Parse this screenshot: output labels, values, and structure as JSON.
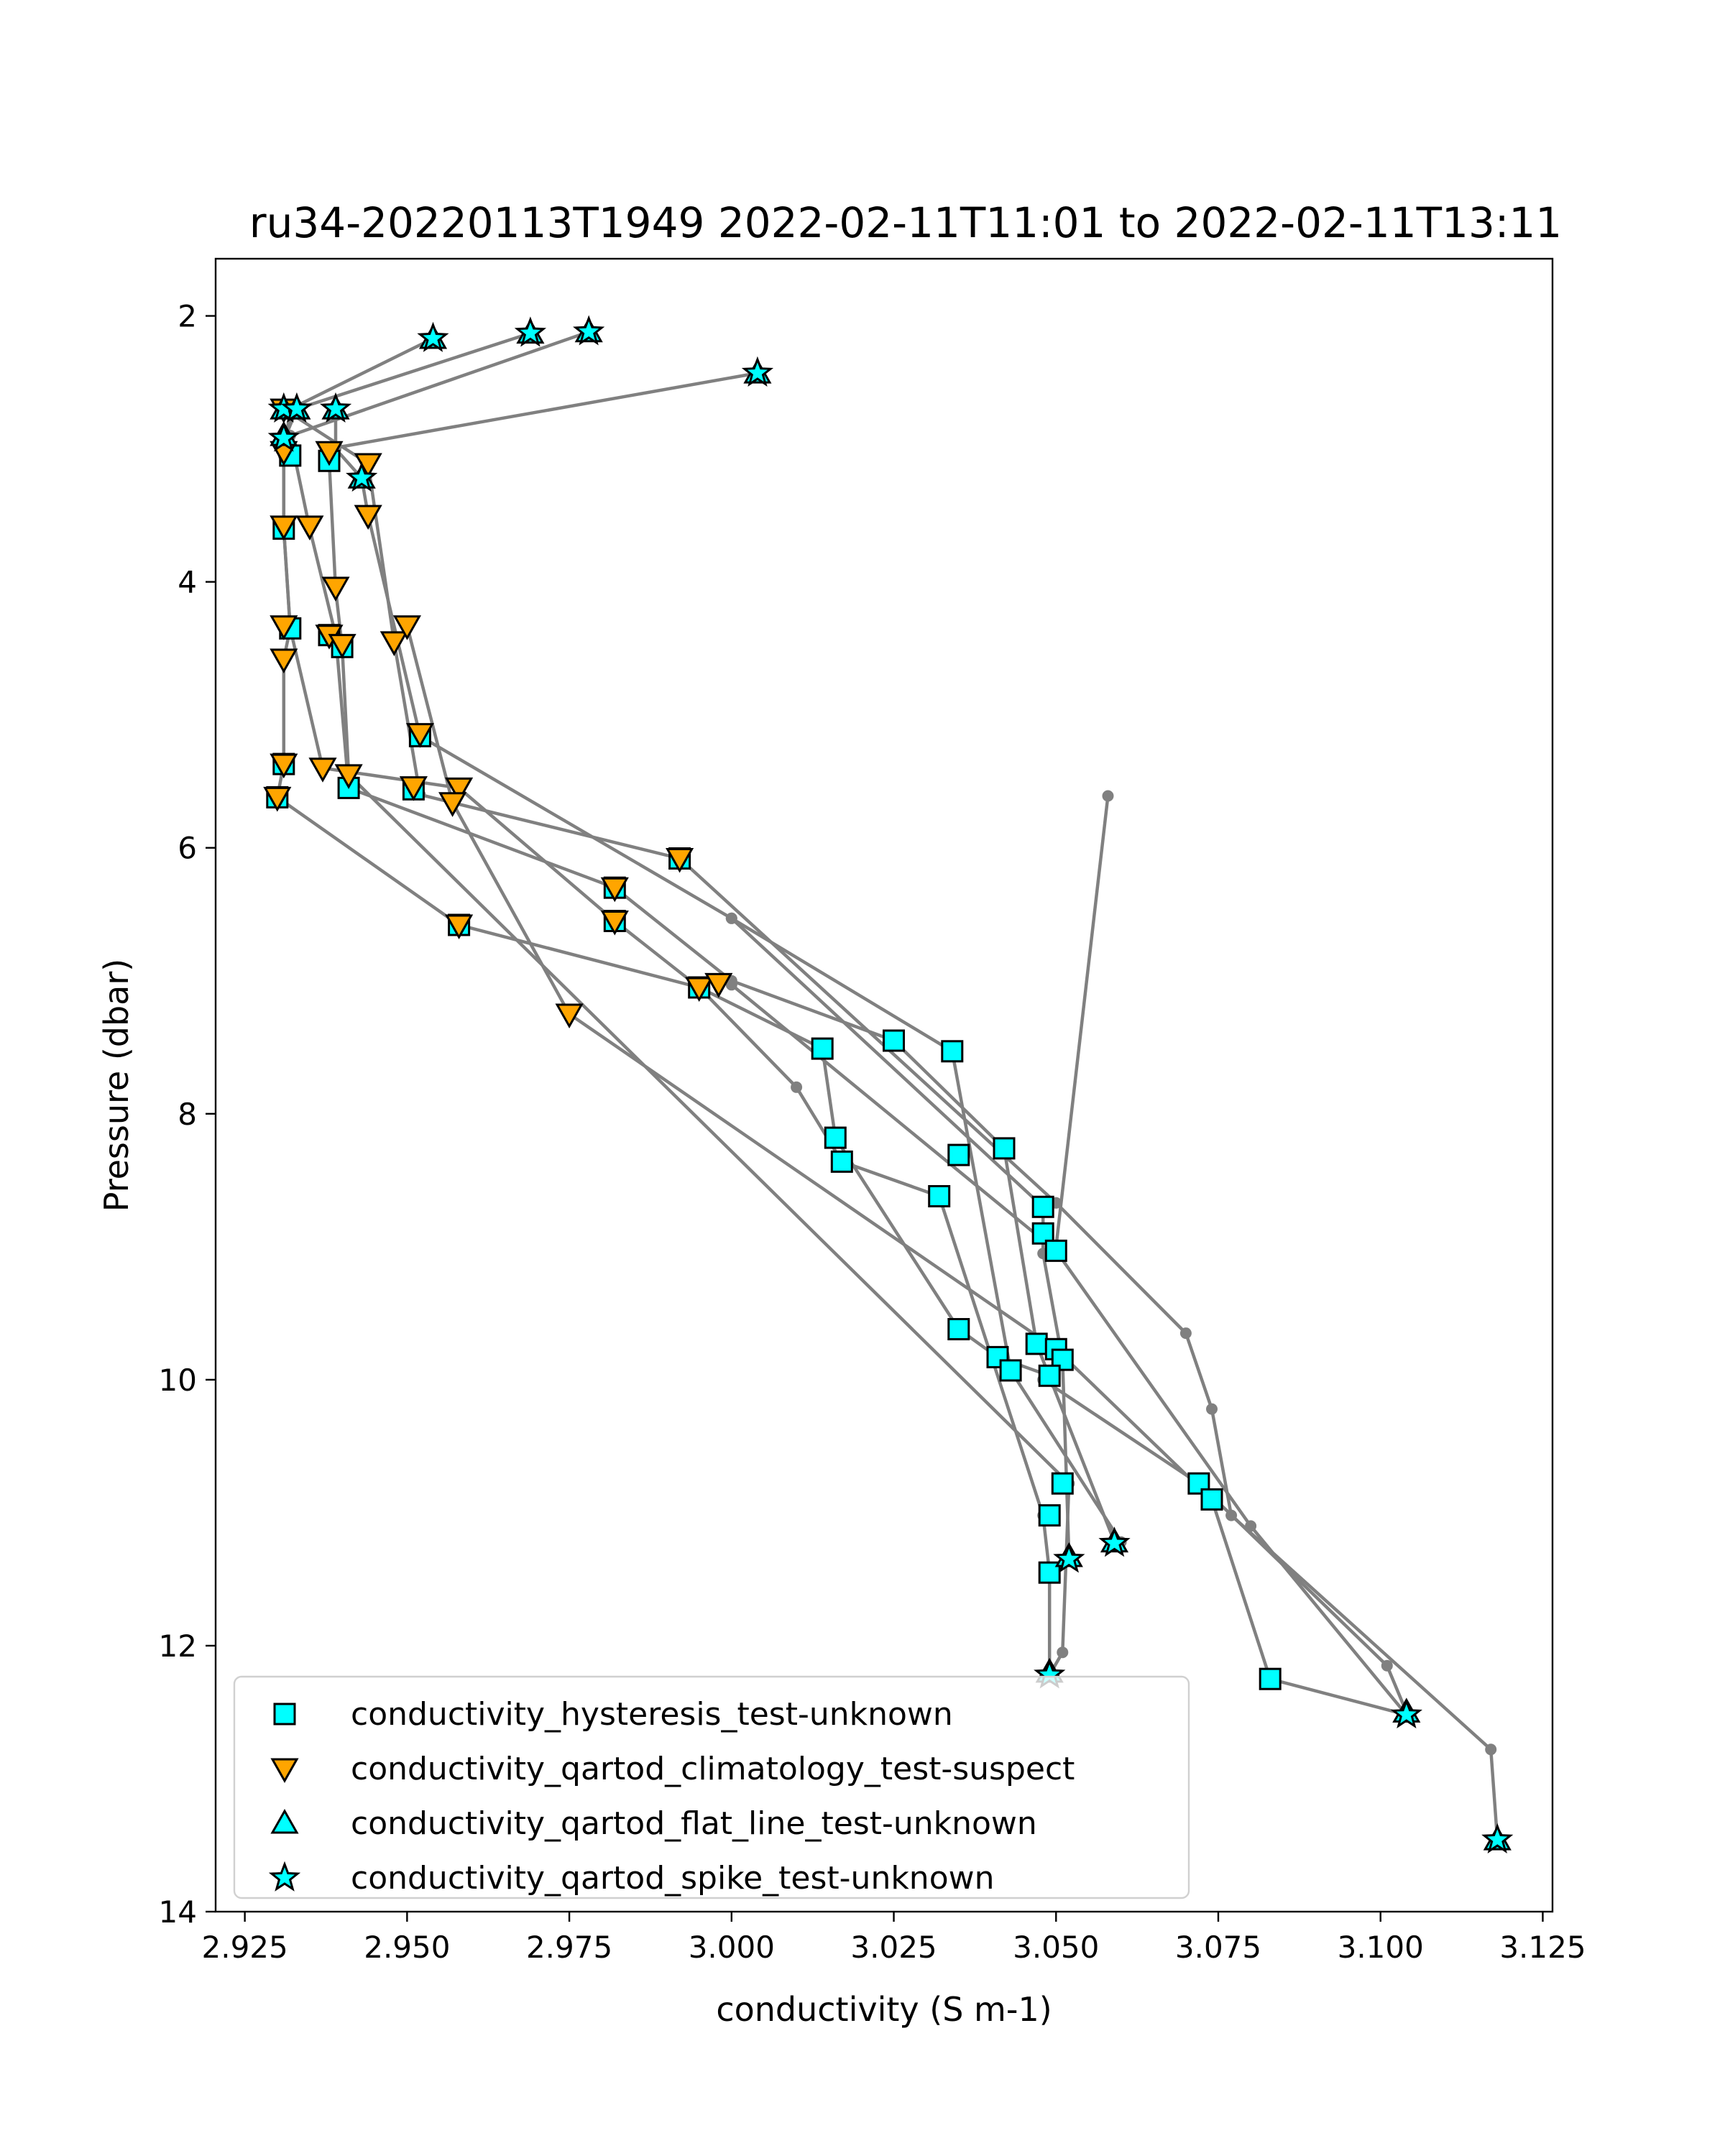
{
  "chart_data": {
    "type": "scatter",
    "title": "ru34-20220113T1949 2022-02-11T11:01 to 2022-02-11T13:11",
    "xlabel": "conductivity (S m-1)",
    "ylabel": "Pressure (dbar)",
    "xlim": [
      2.9205,
      3.1265
    ],
    "ylim": [
      14.0,
      1.57
    ],
    "y_inverted": true,
    "xticks": [
      2.925,
      2.95,
      2.975,
      3.0,
      3.025,
      3.05,
      3.075,
      3.1,
      3.125
    ],
    "xtick_labels": [
      "2.925",
      "2.950",
      "2.975",
      "3.000",
      "3.025",
      "3.050",
      "3.075",
      "3.100",
      "3.125"
    ],
    "yticks": [
      2,
      4,
      6,
      8,
      10,
      12,
      14
    ],
    "ytick_labels": [
      "2",
      "4",
      "6",
      "8",
      "10",
      "12",
      "14"
    ],
    "grid": false,
    "legend_position": "lower-left",
    "line_color": "#808080",
    "profiles": [
      [
        [
          2.954,
          2.17
        ],
        [
          2.932,
          2.7
        ],
        [
          2.931,
          3.05
        ],
        [
          2.931,
          3.6
        ],
        [
          2.932,
          4.35
        ],
        [
          2.931,
          4.58
        ],
        [
          2.931,
          5.37
        ],
        [
          2.93,
          5.62
        ],
        [
          2.958,
          6.58
        ],
        [
          2.995,
          7.05
        ],
        [
          3.014,
          7.51
        ],
        [
          3.016,
          8.18
        ],
        [
          3.035,
          9.62
        ],
        [
          3.041,
          9.83
        ],
        [
          3.049,
          9.97
        ],
        [
          3.048,
          10.0
        ],
        [
          3.072,
          10.78
        ],
        [
          3.101,
          12.15
        ],
        [
          3.104,
          12.5
        ]
      ],
      [
        [
          2.969,
          2.13
        ],
        [
          2.933,
          2.7
        ],
        [
          2.931,
          2.94
        ],
        [
          2.931,
          3.6
        ],
        [
          2.932,
          4.35
        ],
        [
          2.937,
          5.4
        ],
        [
          2.958,
          5.55
        ],
        [
          2.982,
          6.55
        ],
        [
          2.995,
          7.05
        ],
        [
          3.01,
          7.8
        ],
        [
          3.017,
          8.36
        ],
        [
          3.032,
          8.62
        ],
        [
          3.048,
          11.02
        ],
        [
          3.049,
          11.45
        ],
        [
          3.049,
          12.2
        ]
      ],
      [
        [
          2.978,
          2.12
        ],
        [
          2.932,
          2.9
        ],
        [
          2.935,
          3.6
        ],
        [
          2.939,
          4.4
        ],
        [
          2.941,
          5.55
        ],
        [
          2.982,
          6.3
        ],
        [
          3.0,
          7.0
        ],
        [
          3.025,
          7.45
        ],
        [
          3.042,
          8.26
        ],
        [
          3.047,
          9.73
        ],
        [
          3.059,
          11.22
        ]
      ],
      [
        [
          3.004,
          2.43
        ],
        [
          2.938,
          3.0
        ],
        [
          2.938,
          3.09
        ],
        [
          2.939,
          4.06
        ],
        [
          2.94,
          4.49
        ],
        [
          2.941,
          5.45
        ],
        [
          3.052,
          10.78
        ],
        [
          3.051,
          12.05
        ],
        [
          3.049,
          12.22
        ]
      ],
      [
        [
          2.939,
          2.7
        ],
        [
          2.939,
          3.0
        ],
        [
          2.943,
          3.22
        ],
        [
          2.944,
          3.5
        ],
        [
          2.952,
          5.16
        ],
        [
          3.0,
          6.53
        ],
        [
          3.048,
          8.7
        ],
        [
          3.048,
          8.9
        ],
        [
          3.048,
          9.05
        ],
        [
          3.051,
          9.85
        ],
        [
          3.052,
          11.33
        ]
      ],
      [
        [
          2.931,
          2.7
        ],
        [
          2.944,
          3.11
        ],
        [
          2.948,
          4.45
        ],
        [
          2.952,
          5.6
        ],
        [
          2.992,
          6.08
        ],
        [
          3.05,
          8.67
        ],
        [
          3.07,
          9.65
        ],
        [
          3.074,
          10.22
        ],
        [
          3.077,
          11.02
        ],
        [
          3.117,
          12.78
        ],
        [
          3.118,
          13.46
        ]
      ],
      [
        [
          2.95,
          4.33
        ],
        [
          2.957,
          5.66
        ],
        [
          2.975,
          7.25
        ],
        [
          3.05,
          9.77
        ],
        [
          3.074,
          10.9
        ],
        [
          3.083,
          12.25
        ],
        [
          3.104,
          12.52
        ]
      ],
      [
        [
          3.0,
          7.03
        ],
        [
          3.05,
          9.03
        ],
        [
          3.08,
          11.1
        ],
        [
          3.104,
          12.52
        ]
      ],
      [
        [
          3.05,
          9.0
        ],
        [
          3.058,
          5.61
        ]
      ],
      [
        [
          3.0,
          6.53
        ],
        [
          3.034,
          7.53
        ],
        [
          3.043,
          9.93
        ],
        [
          3.06,
          11.22
        ]
      ]
    ],
    "series": [
      {
        "name": "conductivity_hysteresis_test-unknown",
        "marker": "square",
        "fill": "#00ffff",
        "points": [
          [
            2.958,
            6.58
          ],
          [
            2.995,
            7.05
          ],
          [
            3.014,
            7.51
          ],
          [
            3.016,
            8.18
          ],
          [
            3.017,
            8.36
          ],
          [
            3.025,
            7.45
          ],
          [
            3.034,
            7.53
          ],
          [
            3.042,
            8.26
          ],
          [
            3.035,
            8.31
          ],
          [
            3.032,
            8.62
          ],
          [
            3.048,
            8.7
          ],
          [
            3.048,
            8.9
          ],
          [
            3.05,
            9.03
          ],
          [
            3.035,
            9.62
          ],
          [
            3.047,
            9.73
          ],
          [
            3.05,
            9.77
          ],
          [
            3.041,
            9.83
          ],
          [
            3.051,
            9.85
          ],
          [
            3.043,
            9.93
          ],
          [
            3.049,
            9.97
          ],
          [
            3.051,
            10.78
          ],
          [
            3.049,
            11.02
          ],
          [
            3.049,
            11.45
          ],
          [
            3.072,
            10.78
          ],
          [
            3.074,
            10.9
          ],
          [
            3.083,
            12.25
          ],
          [
            2.932,
            3.05
          ],
          [
            2.938,
            3.09
          ],
          [
            2.931,
            3.6
          ],
          [
            2.932,
            4.35
          ],
          [
            2.938,
            4.4
          ],
          [
            2.94,
            4.49
          ],
          [
            2.931,
            5.37
          ],
          [
            2.941,
            5.55
          ],
          [
            2.952,
            5.16
          ],
          [
            2.951,
            5.56
          ],
          [
            2.93,
            5.62
          ],
          [
            2.982,
            6.3
          ],
          [
            2.982,
            6.55
          ],
          [
            2.992,
            6.08
          ]
        ]
      },
      {
        "name": "conductivity_qartod_climatology_test-suspect",
        "marker": "triangle-down",
        "fill": "#ffa500",
        "points": [
          [
            2.931,
            2.7
          ],
          [
            2.931,
            3.02
          ],
          [
            2.931,
            3.58
          ],
          [
            2.935,
            3.58
          ],
          [
            2.931,
            4.33
          ],
          [
            2.931,
            4.58
          ],
          [
            2.938,
            3.02
          ],
          [
            2.944,
            3.11
          ],
          [
            2.944,
            3.5
          ],
          [
            2.939,
            4.04
          ],
          [
            2.938,
            4.4
          ],
          [
            2.94,
            4.47
          ],
          [
            2.948,
            4.45
          ],
          [
            2.95,
            4.33
          ],
          [
            2.952,
            5.14
          ],
          [
            2.931,
            5.37
          ],
          [
            2.937,
            5.4
          ],
          [
            2.941,
            5.45
          ],
          [
            2.951,
            5.54
          ],
          [
            2.958,
            5.55
          ],
          [
            2.957,
            5.66
          ],
          [
            2.93,
            5.62
          ],
          [
            2.992,
            6.08
          ],
          [
            2.982,
            6.3
          ],
          [
            2.982,
            6.55
          ],
          [
            2.958,
            6.58
          ],
          [
            2.995,
            7.05
          ],
          [
            2.998,
            7.02
          ],
          [
            2.975,
            7.25
          ]
        ]
      },
      {
        "name": "conductivity_qartod_flat_line_test-unknown",
        "marker": "triangle-up",
        "fill": "#00ffff",
        "points": [
          [
            2.954,
            2.17
          ],
          [
            2.969,
            2.13
          ],
          [
            2.978,
            2.12
          ],
          [
            3.004,
            2.43
          ],
          [
            2.931,
            2.7
          ],
          [
            2.933,
            2.7
          ],
          [
            2.939,
            2.7
          ],
          [
            2.931,
            2.9
          ],
          [
            2.943,
            3.22
          ],
          [
            3.049,
            12.2
          ],
          [
            3.052,
            11.33
          ],
          [
            3.059,
            11.22
          ],
          [
            3.104,
            12.5
          ],
          [
            3.118,
            13.46
          ]
        ]
      },
      {
        "name": "conductivity_qartod_spike_test-unknown",
        "marker": "star",
        "fill": "#00ffff",
        "points": [
          [
            2.954,
            2.17
          ],
          [
            2.969,
            2.13
          ],
          [
            2.978,
            2.12
          ],
          [
            3.004,
            2.43
          ],
          [
            2.931,
            2.7
          ],
          [
            2.933,
            2.7
          ],
          [
            2.939,
            2.7
          ],
          [
            2.931,
            2.92
          ],
          [
            2.943,
            3.22
          ],
          [
            3.049,
            12.22
          ],
          [
            3.052,
            11.35
          ],
          [
            3.059,
            11.23
          ],
          [
            3.104,
            12.52
          ],
          [
            3.118,
            13.46
          ]
        ]
      }
    ]
  }
}
